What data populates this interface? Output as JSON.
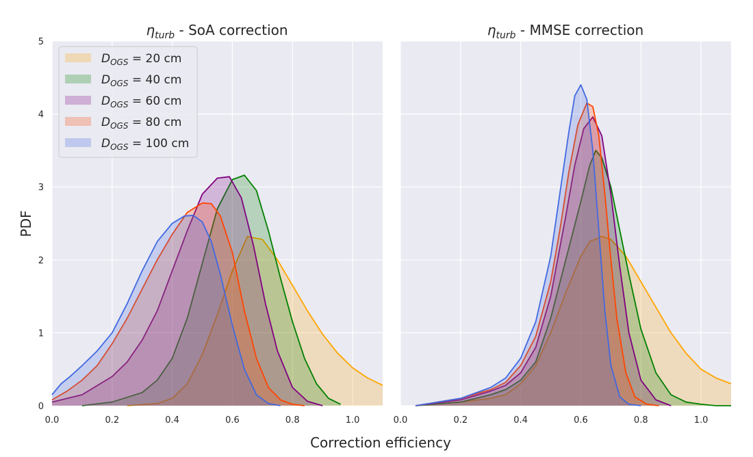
{
  "figure": {
    "xlabel": "Correction efficiency",
    "ylabel": "PDF"
  },
  "legend": {
    "items": [
      {
        "prefix": "D",
        "subscript": "OGS",
        "value": " = 20 cm",
        "color": "#ffa500"
      },
      {
        "prefix": "D",
        "subscript": "OGS",
        "value": " = 40 cm",
        "color": "#008000"
      },
      {
        "prefix": "D",
        "subscript": "OGS",
        "value": " = 60 cm",
        "color": "#800080"
      },
      {
        "prefix": "D",
        "subscript": "OGS",
        "value": " = 80 cm",
        "color": "#ff4500"
      },
      {
        "prefix": "D",
        "subscript": "OGS",
        "value": " = 100 cm",
        "color": "#4169e1"
      }
    ]
  },
  "panels": [
    {
      "title_symbol": "η",
      "title_subscript": "turb",
      "title_text": " - SoA correction"
    },
    {
      "title_symbol": "η",
      "title_subscript": "turb",
      "title_text": " - MMSE correction"
    }
  ],
  "chart_data": [
    {
      "type": "area",
      "title": "η_turb - SoA correction",
      "xlabel": "Correction efficiency",
      "ylabel": "PDF",
      "xlim": [
        0.0,
        1.1
      ],
      "ylim": [
        0,
        5
      ],
      "xticks": [
        "0.0",
        "0.2",
        "0.4",
        "0.6",
        "0.8",
        "1.0"
      ],
      "yticks": [
        "0",
        "1",
        "2",
        "3",
        "4",
        "5"
      ],
      "series": [
        {
          "name": "D_OGS = 20 cm",
          "color": "#ffa500",
          "x": [
            0.25,
            0.35,
            0.4,
            0.45,
            0.5,
            0.55,
            0.6,
            0.65,
            0.7,
            0.75,
            0.8,
            0.85,
            0.9,
            0.95,
            1.0,
            1.05,
            1.1
          ],
          "y": [
            0.0,
            0.03,
            0.1,
            0.3,
            0.7,
            1.25,
            1.85,
            2.32,
            2.28,
            2.0,
            1.65,
            1.3,
            0.98,
            0.72,
            0.52,
            0.38,
            0.28
          ]
        },
        {
          "name": "D_OGS = 40 cm",
          "color": "#008000",
          "x": [
            0.1,
            0.2,
            0.3,
            0.35,
            0.4,
            0.45,
            0.5,
            0.55,
            0.6,
            0.64,
            0.68,
            0.72,
            0.76,
            0.8,
            0.84,
            0.88,
            0.92,
            0.96
          ],
          "y": [
            0.0,
            0.05,
            0.18,
            0.35,
            0.65,
            1.2,
            1.95,
            2.7,
            3.1,
            3.16,
            2.95,
            2.4,
            1.75,
            1.15,
            0.65,
            0.3,
            0.1,
            0.02
          ]
        },
        {
          "name": "D_OGS = 60 cm",
          "color": "#800080",
          "x": [
            0.0,
            0.1,
            0.2,
            0.25,
            0.3,
            0.35,
            0.4,
            0.45,
            0.5,
            0.55,
            0.59,
            0.63,
            0.67,
            0.71,
            0.75,
            0.8,
            0.85,
            0.9
          ],
          "y": [
            0.05,
            0.15,
            0.4,
            0.6,
            0.9,
            1.3,
            1.85,
            2.4,
            2.9,
            3.12,
            3.14,
            2.85,
            2.2,
            1.4,
            0.75,
            0.25,
            0.06,
            0.0
          ]
        },
        {
          "name": "D_OGS = 80 cm",
          "color": "#ff4500",
          "x": [
            0.0,
            0.05,
            0.1,
            0.15,
            0.2,
            0.25,
            0.3,
            0.35,
            0.4,
            0.45,
            0.5,
            0.53,
            0.56,
            0.6,
            0.64,
            0.68,
            0.72,
            0.76,
            0.8,
            0.84
          ],
          "y": [
            0.08,
            0.2,
            0.35,
            0.55,
            0.85,
            1.2,
            1.6,
            2.0,
            2.35,
            2.65,
            2.78,
            2.77,
            2.6,
            2.1,
            1.3,
            0.65,
            0.25,
            0.08,
            0.02,
            0.0
          ]
        },
        {
          "name": "D_OGS = 100 cm",
          "color": "#4169e1",
          "x": [
            0.0,
            0.03,
            0.06,
            0.1,
            0.15,
            0.2,
            0.25,
            0.3,
            0.35,
            0.4,
            0.44,
            0.47,
            0.5,
            0.53,
            0.56,
            0.6,
            0.64,
            0.68,
            0.72,
            0.76
          ],
          "y": [
            0.15,
            0.3,
            0.4,
            0.55,
            0.75,
            1.0,
            1.4,
            1.85,
            2.25,
            2.5,
            2.6,
            2.61,
            2.52,
            2.25,
            1.8,
            1.1,
            0.5,
            0.15,
            0.03,
            0.0
          ]
        }
      ]
    },
    {
      "type": "area",
      "title": "η_turb - MMSE correction",
      "xlabel": "Correction efficiency",
      "ylabel": "PDF",
      "xlim": [
        0.0,
        1.1
      ],
      "ylim": [
        0,
        5
      ],
      "xticks": [
        "0.0",
        "0.2",
        "0.4",
        "0.6",
        "0.8",
        "1.0"
      ],
      "series": [
        {
          "name": "D_OGS = 20 cm",
          "color": "#ffa500",
          "x": [
            0.05,
            0.2,
            0.3,
            0.35,
            0.4,
            0.45,
            0.5,
            0.55,
            0.6,
            0.63,
            0.67,
            0.7,
            0.75,
            0.8,
            0.85,
            0.9,
            0.95,
            1.0,
            1.05,
            1.1
          ],
          "y": [
            0.0,
            0.05,
            0.1,
            0.15,
            0.3,
            0.55,
            1.0,
            1.55,
            2.05,
            2.25,
            2.32,
            2.28,
            2.05,
            1.7,
            1.35,
            1.0,
            0.72,
            0.5,
            0.38,
            0.3
          ]
        },
        {
          "name": "D_OGS = 40 cm",
          "color": "#008000",
          "x": [
            0.05,
            0.2,
            0.3,
            0.35,
            0.4,
            0.45,
            0.5,
            0.55,
            0.6,
            0.63,
            0.65,
            0.67,
            0.7,
            0.73,
            0.76,
            0.8,
            0.85,
            0.9,
            0.95,
            1.0,
            1.05,
            1.1
          ],
          "y": [
            0.0,
            0.05,
            0.15,
            0.22,
            0.35,
            0.6,
            1.2,
            2.0,
            2.8,
            3.3,
            3.5,
            3.4,
            3.0,
            2.4,
            1.8,
            1.05,
            0.45,
            0.15,
            0.05,
            0.02,
            0.0,
            0.0
          ]
        },
        {
          "name": "D_OGS = 60 cm",
          "color": "#800080",
          "x": [
            0.05,
            0.2,
            0.3,
            0.35,
            0.4,
            0.45,
            0.5,
            0.55,
            0.58,
            0.61,
            0.64,
            0.67,
            0.7,
            0.73,
            0.76,
            0.8,
            0.85,
            0.9
          ],
          "y": [
            0.0,
            0.08,
            0.2,
            0.28,
            0.45,
            0.8,
            1.5,
            2.6,
            3.3,
            3.8,
            3.96,
            3.7,
            2.9,
            1.9,
            1.0,
            0.35,
            0.08,
            0.0
          ]
        },
        {
          "name": "D_OGS = 80 cm",
          "color": "#ff4500",
          "x": [
            0.05,
            0.2,
            0.3,
            0.35,
            0.4,
            0.45,
            0.5,
            0.53,
            0.56,
            0.59,
            0.62,
            0.64,
            0.66,
            0.68,
            0.7,
            0.72,
            0.75,
            0.78,
            0.82,
            0.86
          ],
          "y": [
            0.0,
            0.1,
            0.22,
            0.32,
            0.55,
            0.95,
            1.7,
            2.4,
            3.2,
            3.85,
            4.15,
            4.1,
            3.7,
            2.9,
            2.0,
            1.2,
            0.45,
            0.12,
            0.02,
            0.0
          ]
        },
        {
          "name": "D_OGS = 100 cm",
          "color": "#4169e1",
          "x": [
            0.05,
            0.2,
            0.3,
            0.35,
            0.4,
            0.45,
            0.5,
            0.53,
            0.56,
            0.58,
            0.6,
            0.62,
            0.64,
            0.66,
            0.68,
            0.7,
            0.73,
            0.76,
            0.8
          ],
          "y": [
            0.0,
            0.1,
            0.25,
            0.38,
            0.65,
            1.15,
            2.05,
            2.9,
            3.75,
            4.25,
            4.4,
            4.2,
            3.5,
            2.4,
            1.3,
            0.55,
            0.12,
            0.02,
            0.0
          ]
        }
      ]
    }
  ]
}
